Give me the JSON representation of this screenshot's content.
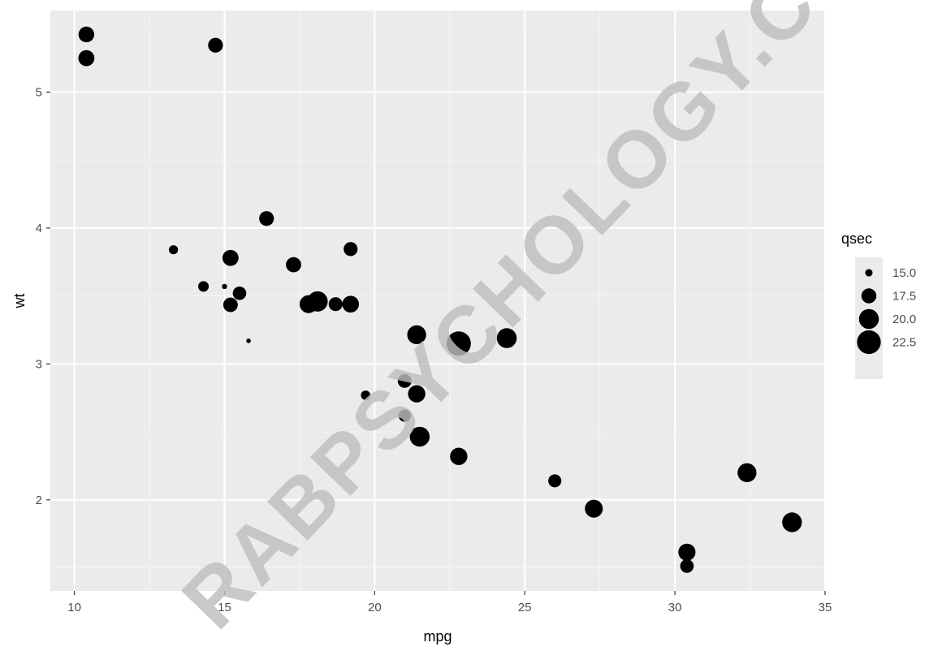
{
  "chart_data": {
    "type": "scatter",
    "title": "",
    "xlabel": "mpg",
    "ylabel": "wt",
    "xlim": [
      9.2,
      35.0
    ],
    "ylim": [
      1.33,
      5.6
    ],
    "x_ticks": [
      10,
      15,
      20,
      25,
      30,
      35
    ],
    "y_ticks": [
      2,
      3,
      4,
      5
    ],
    "grid": true,
    "legend_position": "right",
    "size_variable": "qsec",
    "size_range": [
      14.5,
      22.9
    ],
    "points": [
      {
        "x": 21.0,
        "y": 2.62,
        "size": 16.46
      },
      {
        "x": 21.0,
        "y": 2.875,
        "size": 17.02
      },
      {
        "x": 22.8,
        "y": 2.32,
        "size": 18.61
      },
      {
        "x": 21.4,
        "y": 3.215,
        "size": 19.44
      },
      {
        "x": 18.7,
        "y": 3.44,
        "size": 17.02
      },
      {
        "x": 18.1,
        "y": 3.46,
        "size": 20.22
      },
      {
        "x": 14.3,
        "y": 3.57,
        "size": 15.84
      },
      {
        "x": 24.4,
        "y": 3.19,
        "size": 20.0
      },
      {
        "x": 22.8,
        "y": 3.15,
        "size": 22.9
      },
      {
        "x": 19.2,
        "y": 3.44,
        "size": 18.3
      },
      {
        "x": 17.8,
        "y": 3.44,
        "size": 18.9
      },
      {
        "x": 16.4,
        "y": 4.07,
        "size": 17.4
      },
      {
        "x": 17.3,
        "y": 3.73,
        "size": 17.6
      },
      {
        "x": 15.2,
        "y": 3.78,
        "size": 18.0
      },
      {
        "x": 10.4,
        "y": 5.25,
        "size": 17.98
      },
      {
        "x": 10.4,
        "y": 5.424,
        "size": 17.82
      },
      {
        "x": 14.7,
        "y": 5.345,
        "size": 17.42
      },
      {
        "x": 32.4,
        "y": 2.2,
        "size": 19.47
      },
      {
        "x": 30.4,
        "y": 1.615,
        "size": 18.52
      },
      {
        "x": 33.9,
        "y": 1.835,
        "size": 19.9
      },
      {
        "x": 21.5,
        "y": 2.465,
        "size": 20.01
      },
      {
        "x": 15.5,
        "y": 3.52,
        "size": 16.87
      },
      {
        "x": 15.2,
        "y": 3.435,
        "size": 17.3
      },
      {
        "x": 13.3,
        "y": 3.84,
        "size": 15.41
      },
      {
        "x": 19.2,
        "y": 3.845,
        "size": 17.05
      },
      {
        "x": 27.3,
        "y": 1.935,
        "size": 18.9
      },
      {
        "x": 26.0,
        "y": 2.14,
        "size": 16.7
      },
      {
        "x": 30.4,
        "y": 1.513,
        "size": 16.9
      },
      {
        "x": 15.8,
        "y": 3.17,
        "size": 14.5
      },
      {
        "x": 19.7,
        "y": 2.77,
        "size": 15.5
      },
      {
        "x": 15.0,
        "y": 3.57,
        "size": 14.6
      },
      {
        "x": 21.4,
        "y": 2.78,
        "size": 18.6
      }
    ],
    "legend": {
      "title": "qsec",
      "entries": [
        {
          "label": "15.0",
          "value": 15.0
        },
        {
          "label": "17.5",
          "value": 17.5
        },
        {
          "label": "20.0",
          "value": 20.0
        },
        {
          "label": "22.5",
          "value": 22.5
        }
      ]
    },
    "colors": {
      "panel_background": "#ebebeb",
      "grid_major": "#ffffff",
      "grid_minor": "#f5f5f5",
      "point": "#000000",
      "tick_text": "#4d4d4d",
      "axis_title": "#000000",
      "watermark": "#bdbdbd"
    }
  },
  "watermark": "RABPSYCHOLOGY.C"
}
